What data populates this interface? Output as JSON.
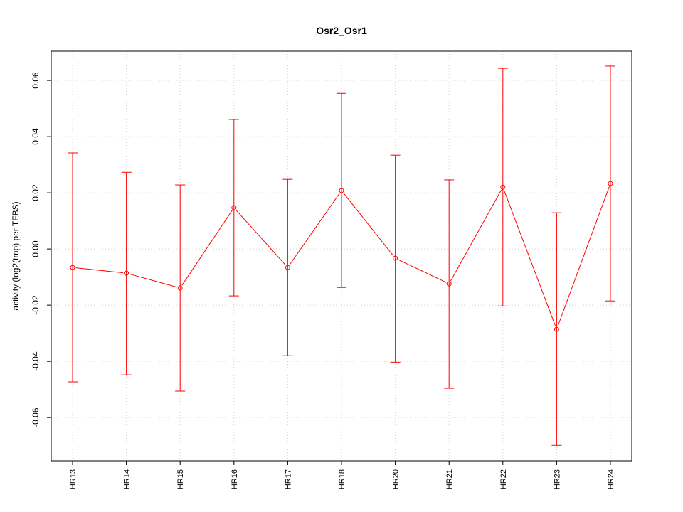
{
  "chart_data": {
    "type": "line",
    "title": "Osr2_Osr1",
    "xlabel": "",
    "ylabel": "activity (log2(tmp) per TFBS)",
    "categories": [
      "HR13",
      "HR14",
      "HR15",
      "HR16",
      "HR17",
      "HR18",
      "HR20",
      "HR21",
      "HR22",
      "HR23",
      "HR24"
    ],
    "series": [
      {
        "name": "activity",
        "color": "#ff0000",
        "values": [
          -0.0066,
          -0.0086,
          -0.0139,
          0.0147,
          -0.0066,
          0.0208,
          -0.0033,
          -0.0124,
          0.022,
          -0.0286,
          0.0233
        ],
        "upper": [
          0.0342,
          0.0273,
          0.0228,
          0.0461,
          0.0248,
          0.0554,
          0.0334,
          0.0246,
          0.0643,
          0.0129,
          0.0651
        ],
        "lower": [
          -0.0473,
          -0.0448,
          -0.0506,
          -0.0167,
          -0.038,
          -0.0137,
          -0.0403,
          -0.0496,
          -0.0203,
          -0.0699,
          -0.0185
        ]
      }
    ],
    "yticks": [
      -0.06,
      -0.04,
      -0.02,
      0.0,
      0.02,
      0.04,
      0.06
    ],
    "ytick_labels": [
      "-0.06",
      "-0.04",
      "-0.02",
      "0.00",
      "0.02",
      "0.04",
      "0.06"
    ],
    "ylim": [
      -0.0754,
      0.0704
    ],
    "grid": true
  }
}
